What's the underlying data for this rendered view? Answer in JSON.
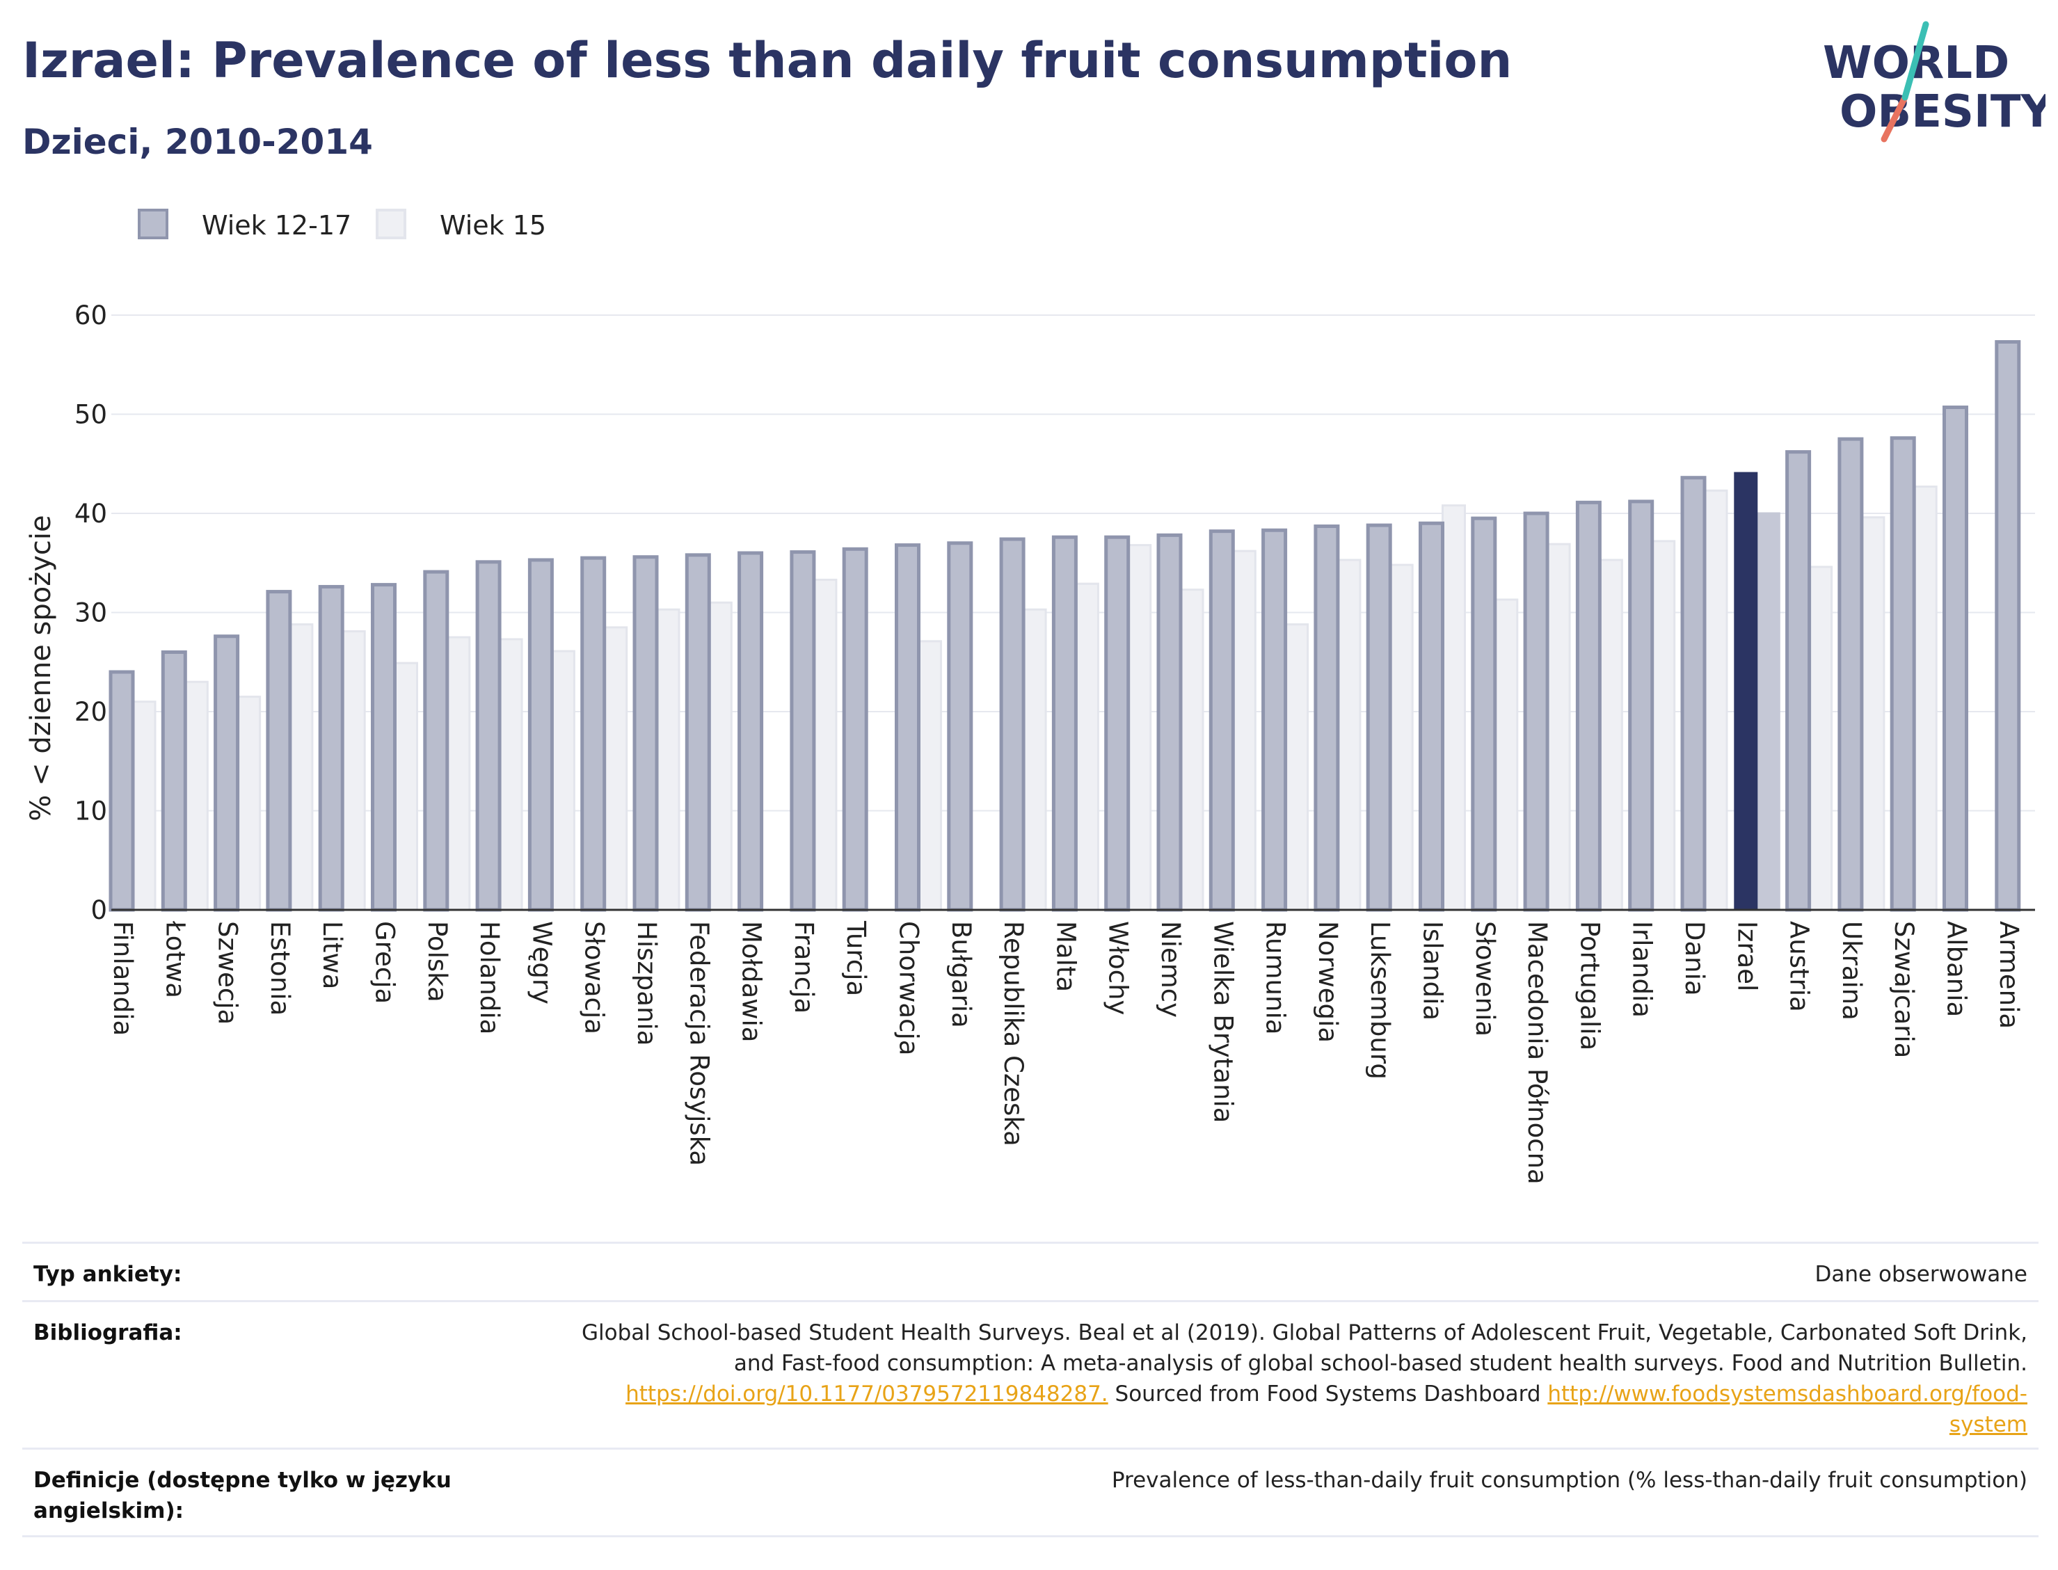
{
  "header": {
    "title": "Izrael: Prevalence of less than daily fruit consumption",
    "subtitle": "Dzieci, 2010-2014"
  },
  "logo": {
    "line1": "WORLD",
    "line2": "OBESITY"
  },
  "colors": {
    "series1": "#b9bdcd",
    "series1_border": "#8f95ad",
    "series2": "#eff0f4",
    "series2_border": "#e3e5ec",
    "highlight": "#2b3463",
    "highlight_light": "#c5c8d6",
    "title": "#2b3463",
    "logo_teal": "#3bbfb4",
    "logo_coral": "#e8735f"
  },
  "chart_data": {
    "type": "bar",
    "ylabel": "% < dzienne spożycie",
    "xlabel": "",
    "ylim": [
      0,
      60
    ],
    "yticks": [
      0,
      10,
      20,
      30,
      40,
      50,
      60
    ],
    "grid": true,
    "legend_position": "top-left",
    "highlight_category": "Izrael",
    "categories": [
      "Finlandia",
      "Łotwa",
      "Szwecja",
      "Estonia",
      "Litwa",
      "Grecja",
      "Polska",
      "Holandia",
      "Węgry",
      "Słowacja",
      "Hiszpania",
      "Federacja Rosyjska",
      "Mołdawia",
      "Francja",
      "Turcja",
      "Chorwacja",
      "Bułgaria",
      "Republika Czeska",
      "Malta",
      "Włochy",
      "Niemcy",
      "Wielka Brytania",
      "Rumunia",
      "Norwegia",
      "Luksemburg",
      "Islandia",
      "Słowenia",
      "Macedonia Północna",
      "Portugalia",
      "Irlandia",
      "Dania",
      "Izrael",
      "Austria",
      "Ukraina",
      "Szwajcaria",
      "Albania",
      "Armenia"
    ],
    "series": [
      {
        "name": "Wiek 12-17",
        "values": [
          24,
          26,
          27.6,
          32.1,
          32.6,
          32.8,
          34.1,
          35.1,
          35.3,
          35.5,
          35.6,
          35.8,
          36,
          36.1,
          36.4,
          36.8,
          37,
          37.4,
          37.6,
          37.6,
          37.8,
          38.2,
          38.3,
          38.7,
          38.8,
          39,
          39.5,
          40,
          41.1,
          41.2,
          43.6,
          44.1,
          46.2,
          47.5,
          47.6,
          50.7,
          57.3
        ]
      },
      {
        "name": "Wiek 15",
        "values": [
          21,
          23,
          21.5,
          28.8,
          28.1,
          24.9,
          27.5,
          27.3,
          26.1,
          28.5,
          30.3,
          31,
          null,
          33.3,
          null,
          27.1,
          null,
          30.3,
          32.9,
          36.8,
          32.3,
          36.2,
          28.8,
          35.3,
          34.8,
          40.8,
          31.3,
          36.9,
          35.3,
          37.2,
          42.3,
          40,
          34.6,
          39.6,
          42.7,
          null,
          null
        ]
      }
    ]
  },
  "meta": {
    "survey_label": "Typ ankiety:",
    "survey_value": "Dane obserwowane",
    "bibliography_label": "Bibliografia:",
    "bibliography_text_1": "Global School-based Student Health Surveys. Beal et al (2019). Global Patterns of Adolescent Fruit, Vegetable, Carbonated Soft Drink,",
    "bibliography_text_2": "and Fast-food consumption: A meta-analysis of global school-based student health surveys. Food and Nutrition Bulletin.",
    "bibliography_link_1": "https://doi.org/10.1177/0379572119848287.",
    "bibliography_text_3": " Sourced from Food Systems Dashboard ",
    "bibliography_link_2a": "http://www.foodsystemsdashboard.org/food-",
    "bibliography_link_2b": "system",
    "definitions_label": "Definicje (dostępne tylko w języku angielskim):",
    "definitions_value": "Prevalence of less-than-daily fruit consumption (% less-than-daily fruit consumption)"
  }
}
